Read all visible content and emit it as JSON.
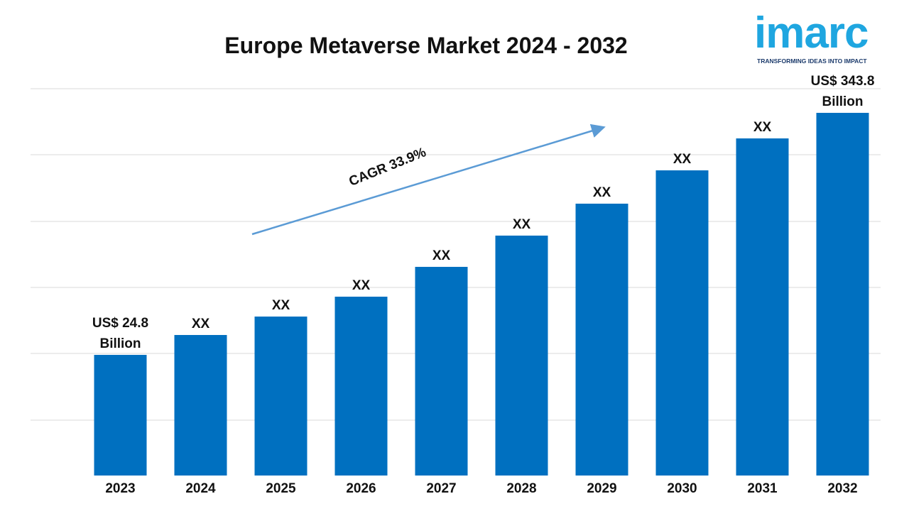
{
  "chart_data": {
    "type": "bar",
    "title": "Europe Metaverse Market 2024 - 2032",
    "categories": [
      "2023",
      "2024",
      "2025",
      "2026",
      "2027",
      "2028",
      "2029",
      "2030",
      "2031",
      "2032"
    ],
    "values": [
      24.8,
      51.0,
      75.3,
      101.5,
      140.8,
      182.0,
      224.1,
      268.0,
      310.1,
      343.8
    ],
    "value_labels": [
      "US$ 24.8 Billion",
      "XX",
      "XX",
      "XX",
      "XX",
      "XX",
      "XX",
      "XX",
      "XX",
      "US$ 343.8 Billion"
    ],
    "color": "#0070c0",
    "ylim": [
      -134.2,
      375.6
    ],
    "annotation": "CAGR 33.9%"
  },
  "logo": {
    "name": "imarc",
    "tagline": "TRANSFORMING IDEAS INTO IMPACT"
  }
}
